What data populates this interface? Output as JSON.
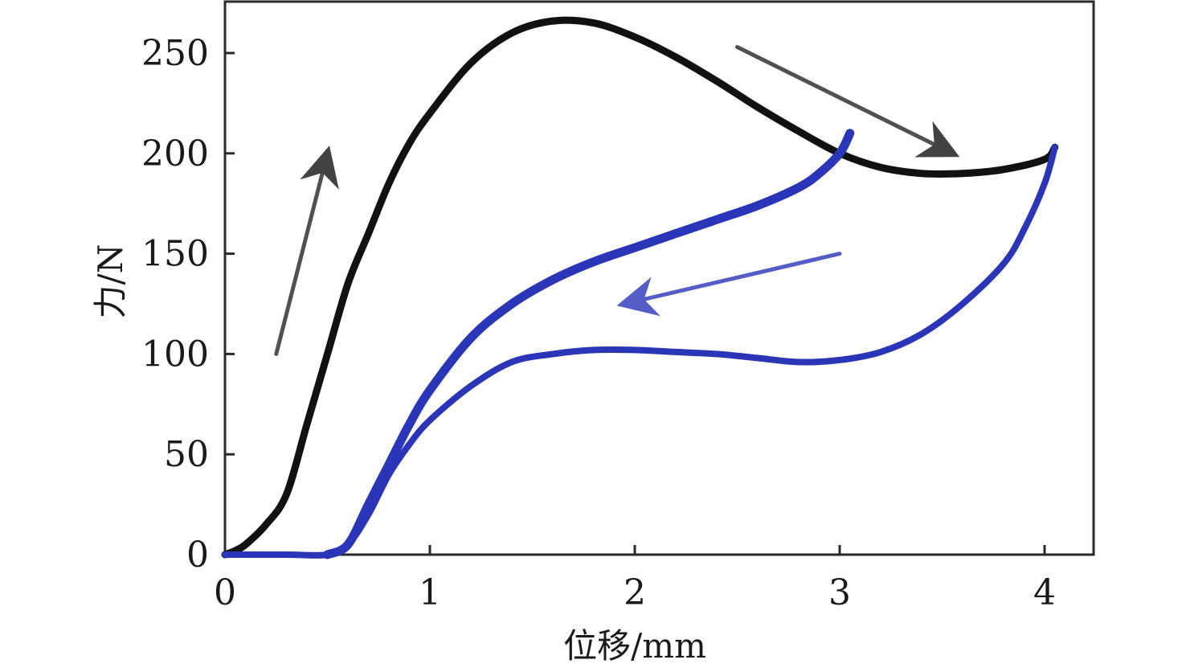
{
  "chart_data": {
    "type": "line",
    "title": "",
    "xlabel": "位移/mm",
    "ylabel": "力/N",
    "xlim": [
      0,
      4.25
    ],
    "ylim": [
      0,
      275
    ],
    "xticks": [
      0,
      1,
      2,
      3,
      4
    ],
    "yticks": [
      0,
      50,
      100,
      150,
      200,
      250
    ],
    "xtick_labels": [
      "0",
      "1",
      "2",
      "3",
      "4"
    ],
    "ytick_labels": [
      "0",
      "50",
      "100",
      "150",
      "200",
      "250"
    ],
    "legend": null,
    "grid": false,
    "colors": {
      "loading": "#111111",
      "unloading": "#2a35b8",
      "arrow": "#333333"
    },
    "series": [
      {
        "color": "#111111",
        "x": [
          0.0,
          0.05,
          0.1,
          0.2,
          0.3,
          0.4,
          0.5,
          0.6,
          0.7,
          0.8,
          0.9,
          1.0,
          1.2,
          1.4,
          1.6,
          1.8,
          2.0,
          2.2,
          2.4,
          2.6,
          2.8,
          3.0,
          3.2,
          3.4,
          3.6,
          3.8,
          4.0,
          4.05
        ],
        "y": [
          0,
          2,
          5,
          15,
          30,
          65,
          100,
          135,
          160,
          185,
          205,
          220,
          245,
          260,
          266,
          265,
          258,
          248,
          236,
          223,
          211,
          200,
          193,
          190,
          190,
          192,
          197,
          203
        ]
      },
      {
        "color": "#2a35b8",
        "x": [
          0.0,
          0.3,
          0.5,
          0.6,
          0.7,
          0.8,
          0.9,
          1.0,
          1.2,
          1.4,
          1.6,
          1.8,
          2.0,
          2.2,
          2.4,
          2.6,
          2.8,
          3.0,
          3.2,
          3.4,
          3.6,
          3.8,
          3.9,
          4.0,
          4.05
        ],
        "y": [
          0,
          0,
          0,
          5,
          20,
          40,
          55,
          67,
          84,
          96,
          100,
          102,
          102,
          101,
          100,
          98,
          96,
          97,
          101,
          110,
          125,
          145,
          162,
          185,
          203
        ]
      },
      {
        "color": "#2a35b8",
        "x": [
          0.5,
          0.6,
          0.7,
          0.8,
          0.9,
          1.0,
          1.2,
          1.4,
          1.6,
          1.8,
          2.0,
          2.2,
          2.4,
          2.6,
          2.8,
          2.9,
          3.0,
          3.05
        ],
        "y": [
          0,
          5,
          25,
          45,
          65,
          82,
          108,
          125,
          137,
          146,
          153,
          160,
          167,
          174,
          183,
          190,
          200,
          210
        ]
      }
    ],
    "annotations": [
      {
        "type": "arrow",
        "from": [
          0.25,
          100
        ],
        "to": [
          0.5,
          200
        ]
      },
      {
        "type": "arrow",
        "from": [
          2.5,
          253
        ],
        "to": [
          3.55,
          200
        ]
      },
      {
        "type": "arrow",
        "from": [
          3.0,
          150
        ],
        "to": [
          1.95,
          125
        ]
      }
    ]
  }
}
